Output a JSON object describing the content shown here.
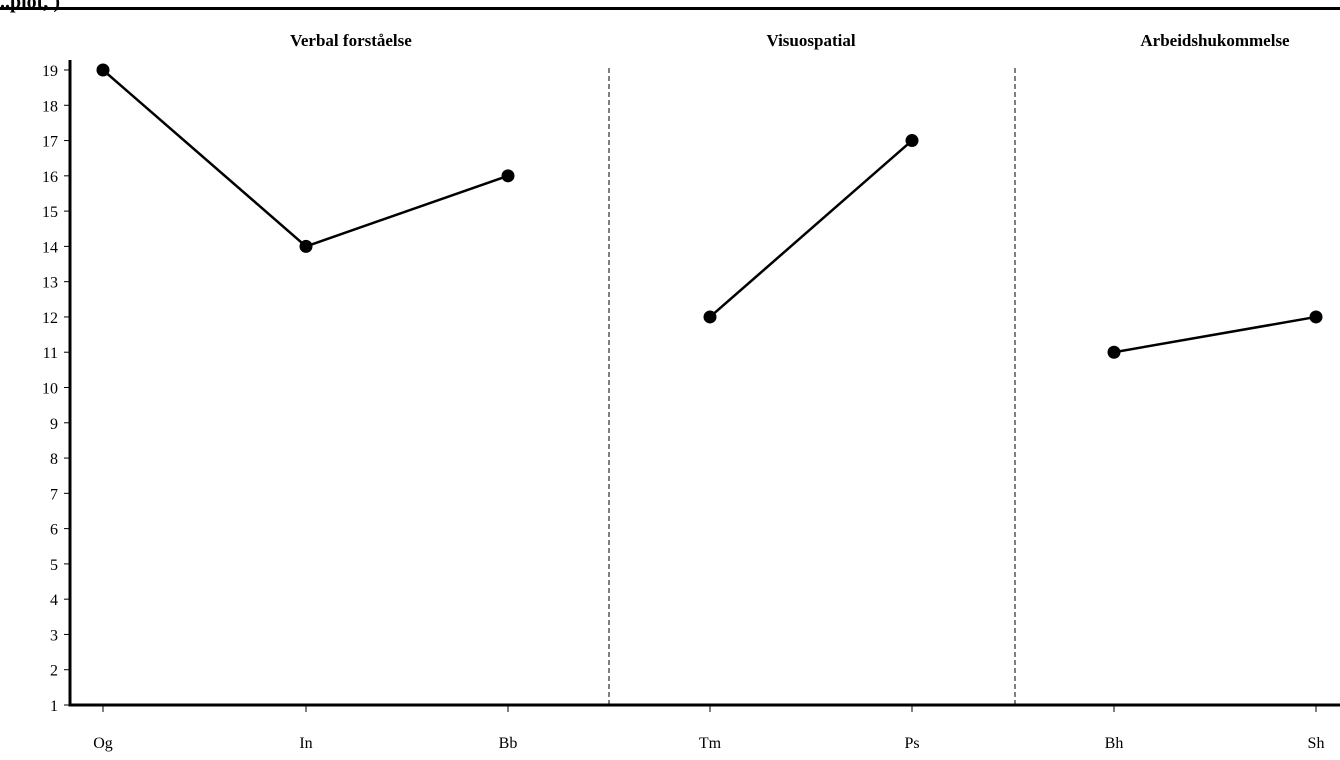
{
  "header_fragment": "..plot, )",
  "chart_data": {
    "type": "line",
    "categories": [
      "Og",
      "In",
      "Bb",
      "Tm",
      "Ps",
      "Bh",
      "Sh"
    ],
    "groups": [
      {
        "title": "Verbal forståelse",
        "indices": [
          0,
          1,
          2
        ]
      },
      {
        "title": "Visuospatial",
        "indices": [
          3,
          4
        ]
      },
      {
        "title": "Arbeidshukommelse",
        "indices": [
          5,
          6
        ]
      }
    ],
    "values": [
      19,
      14,
      16,
      12,
      17,
      11,
      12
    ],
    "ylim": [
      1,
      19
    ],
    "yticks": [
      1,
      2,
      3,
      4,
      5,
      6,
      7,
      8,
      9,
      10,
      11,
      12,
      13,
      14,
      15,
      16,
      17,
      18,
      19
    ],
    "xlabel": "",
    "ylabel": "",
    "grid": false,
    "marker": "circle",
    "line_color": "#000000"
  }
}
